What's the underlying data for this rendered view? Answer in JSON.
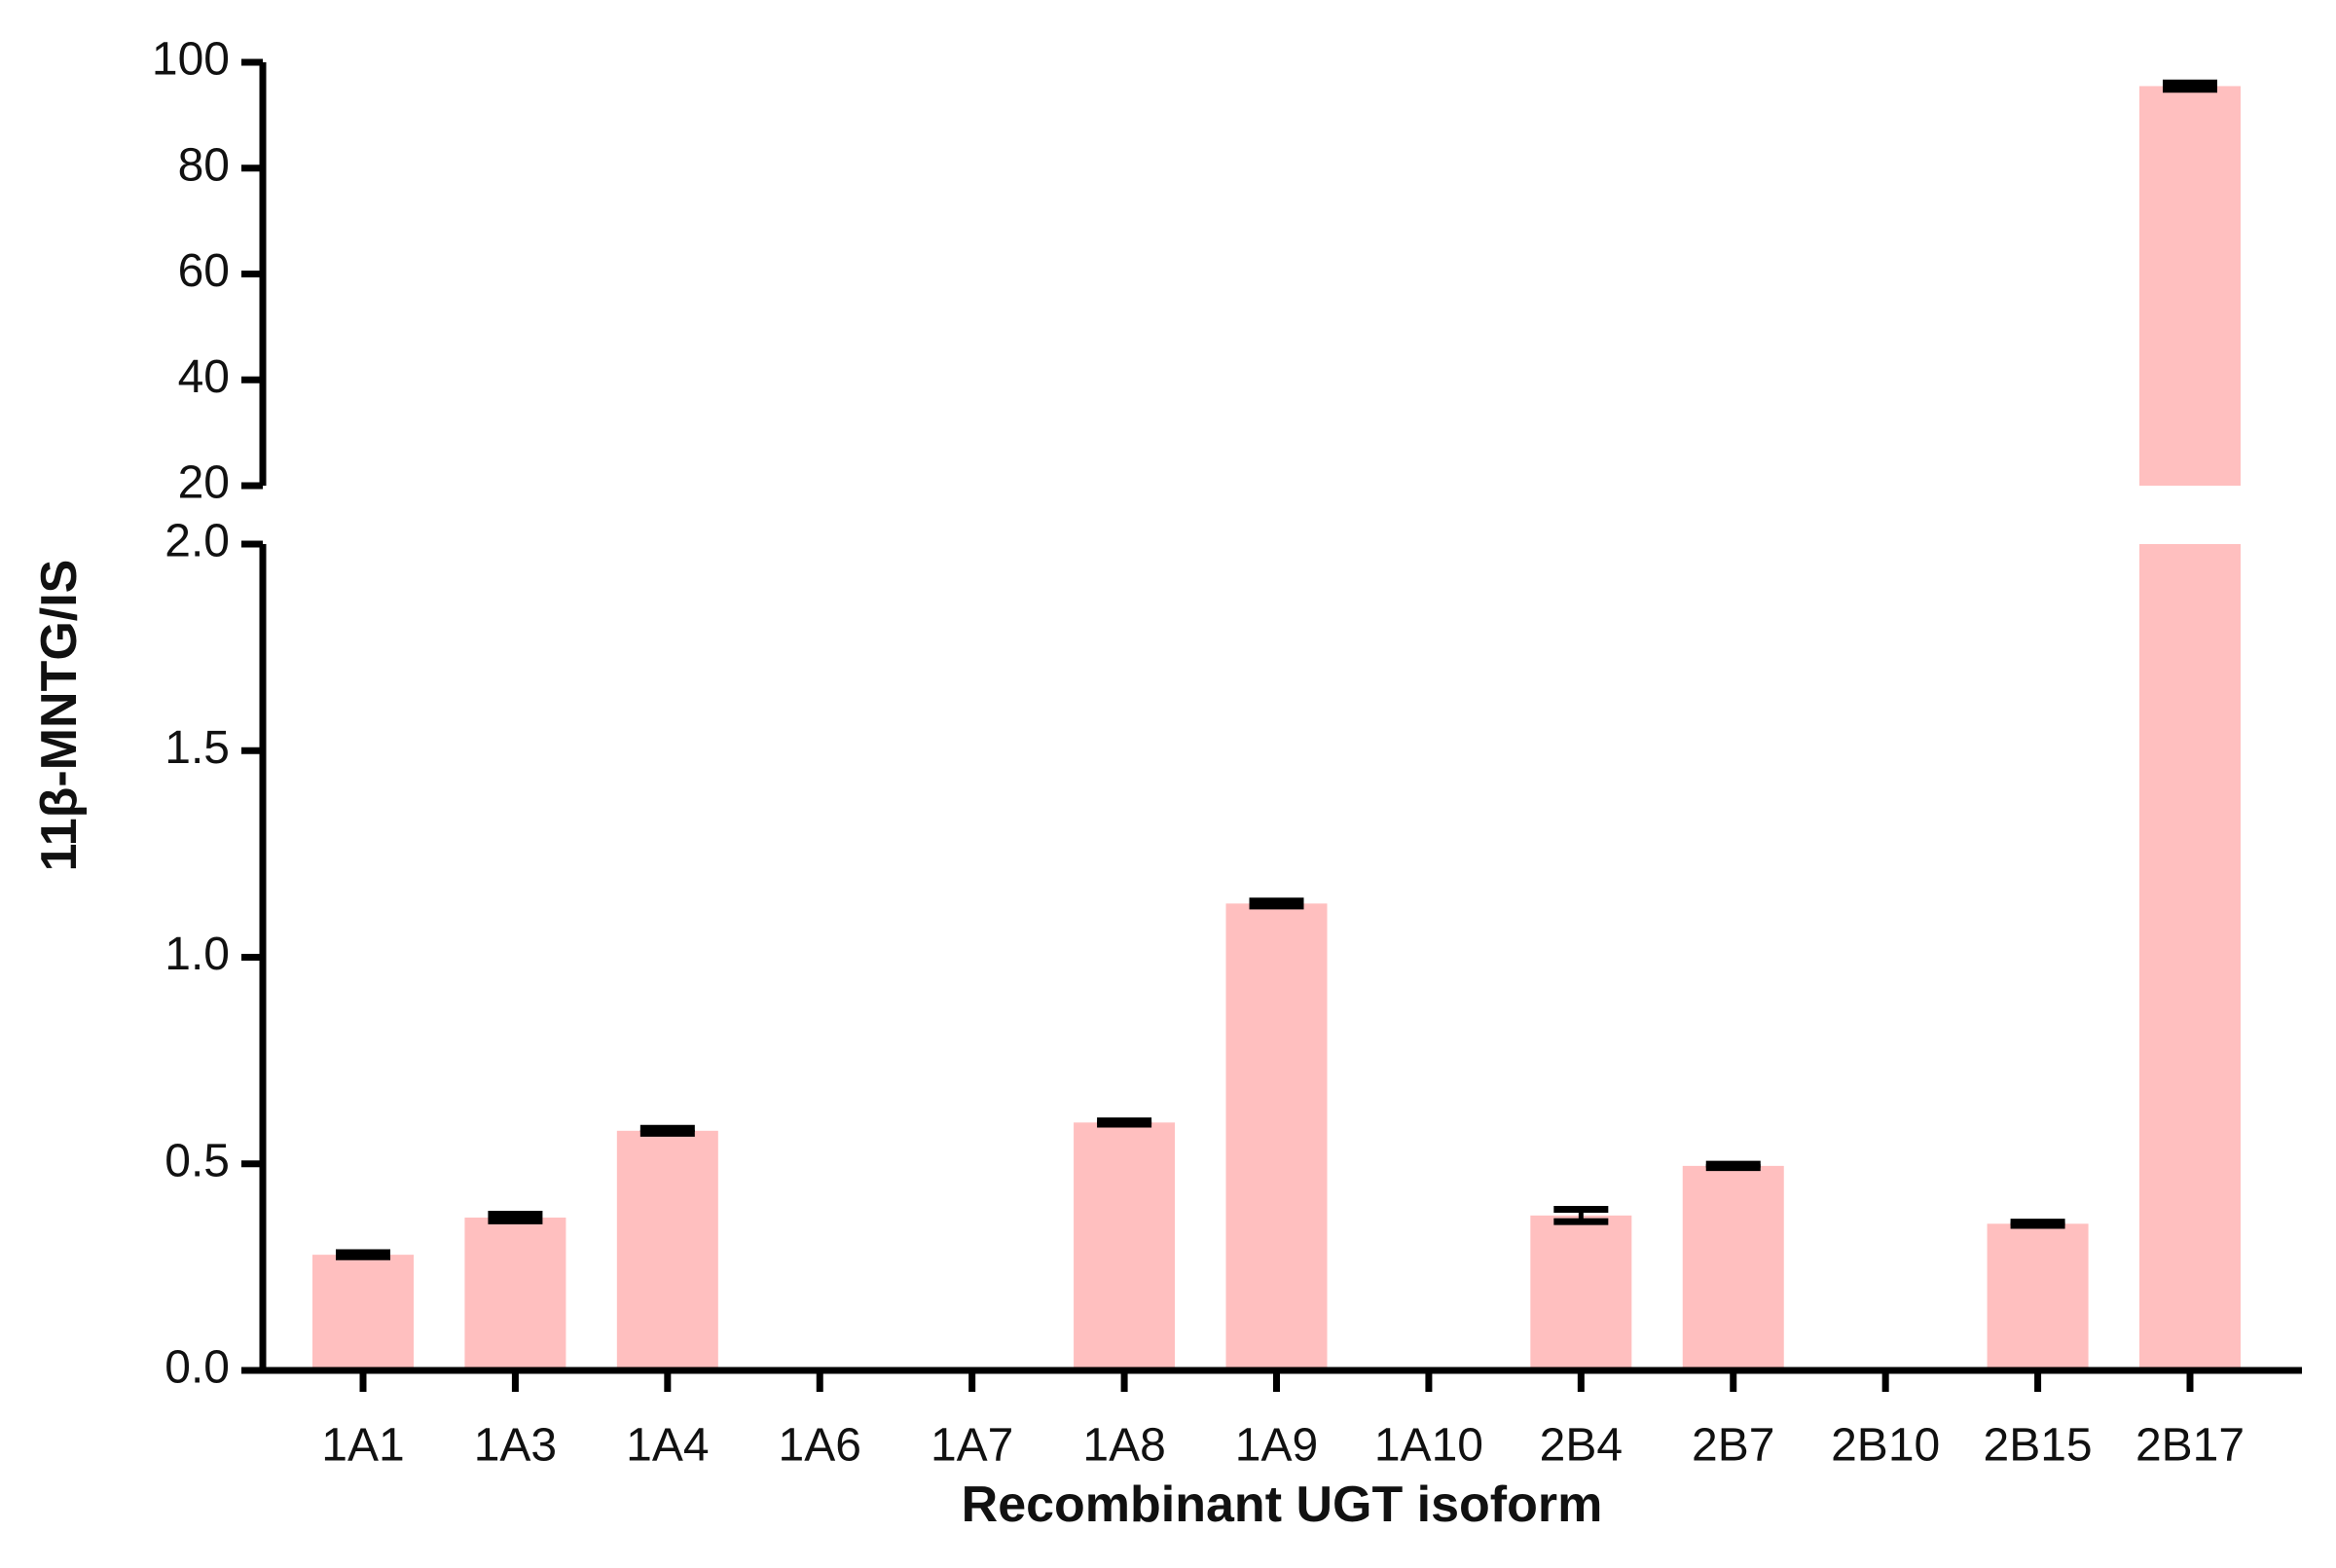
{
  "chart_data": {
    "type": "bar",
    "x_label": "Recombinant UGT isoform",
    "y_label": "11β-MNTG/IS",
    "categories": [
      "1A1",
      "1A3",
      "1A4",
      "1A6",
      "1A7",
      "1A8",
      "1A9",
      "1A10",
      "2B4",
      "2B7",
      "2B10",
      "2B15",
      "2B17"
    ],
    "values": [
      0.28,
      0.37,
      0.58,
      0,
      0,
      0.6,
      1.13,
      0,
      0.375,
      0.495,
      0,
      0.355,
      95.5
    ],
    "errors": [
      0.005,
      0.008,
      0.006,
      null,
      null,
      0.004,
      0.006,
      null,
      0.015,
      0.004,
      null,
      0.004,
      0.6
    ],
    "color": "#ffbfbf",
    "y_segments": [
      {
        "ylim": [
          0,
          2.0
        ],
        "yticks": [
          {
            "value": 0,
            "label": "0.0"
          },
          {
            "value": 0.5,
            "label": "0.5"
          },
          {
            "value": 1.0,
            "label": "1.0"
          },
          {
            "value": 1.5,
            "label": "1.5"
          },
          {
            "value": 2.0,
            "label": "2.0"
          }
        ]
      },
      {
        "ylim": [
          20,
          100
        ],
        "yticks": [
          20,
          40,
          60,
          80,
          100
        ]
      }
    ]
  }
}
